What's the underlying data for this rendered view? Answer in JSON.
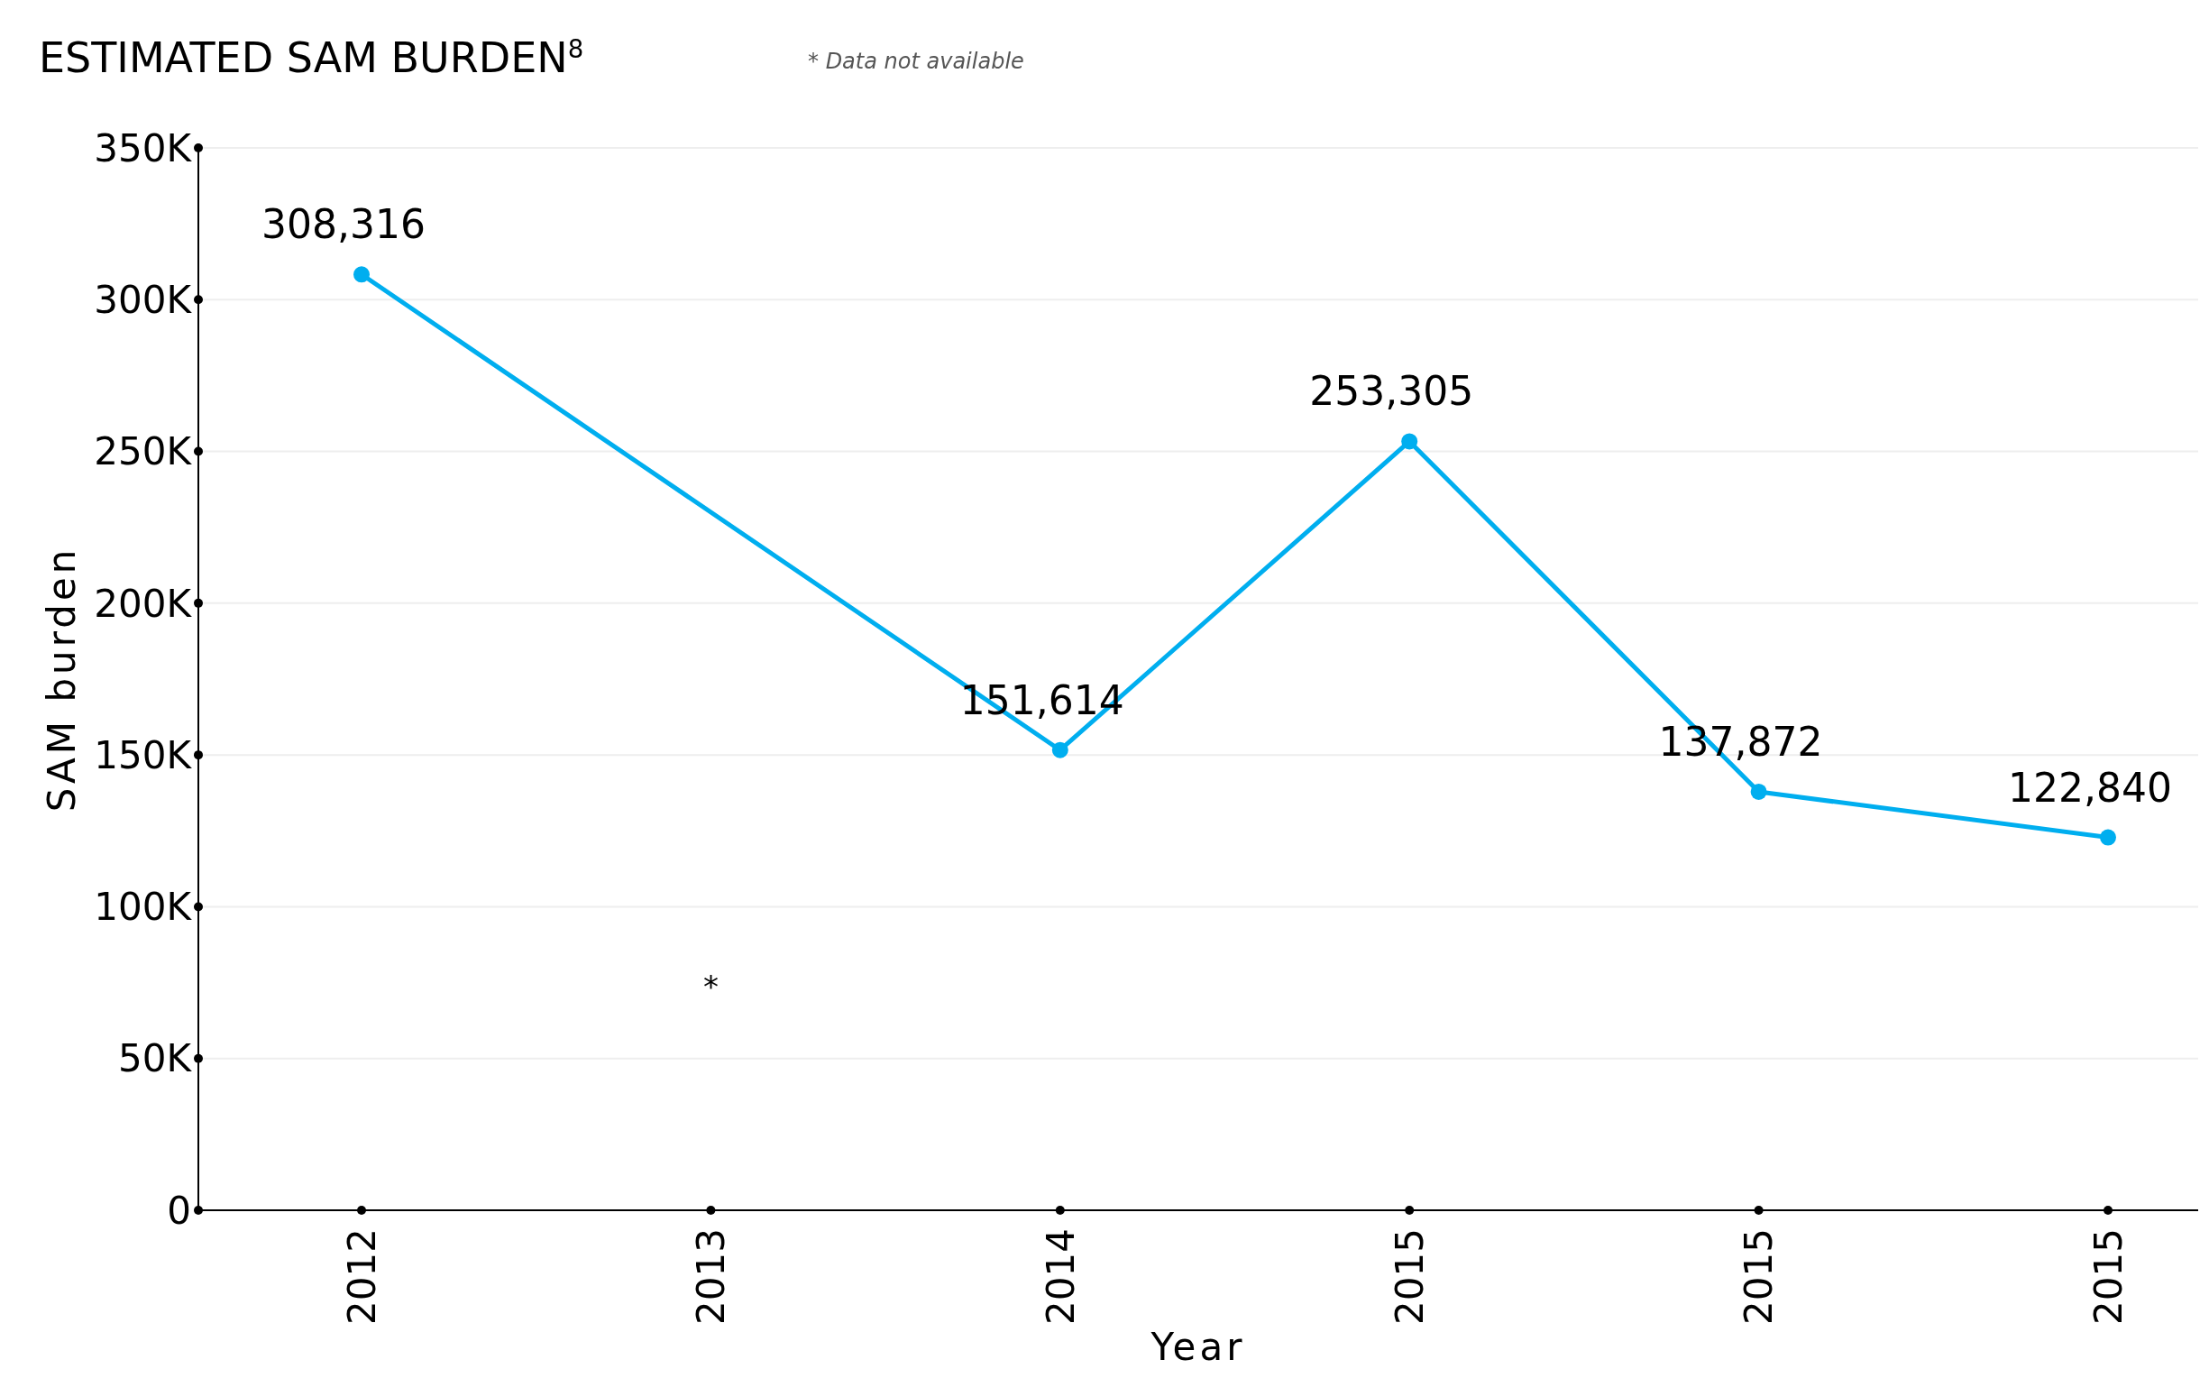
{
  "chart_data": {
    "type": "line",
    "title": "ESTIMATED SAM BURDEN$^{8}$",
    "xlabel": "Year",
    "ylabel": "SAM burden",
    "categories": [
      "2012",
      "2013",
      "2014",
      "2015",
      "2015",
      "2015"
    ],
    "series": [
      {
        "color": "#00aeef",
        "values": [
          308316,
          null,
          151614,
          253305,
          137872,
          122840
        ],
        "value_labels": [
          "308,316",
          null,
          "151,614",
          "253,305",
          "137,872",
          "122,840"
        ]
      }
    ],
    "ylim": [
      0,
      350000
    ],
    "yticks": [
      0,
      {
        "value": 50000,
        "label": "50K"
      },
      {
        "value": 100000,
        "label": "100K"
      },
      {
        "value": 150000,
        "label": "150K"
      },
      {
        "value": 200000,
        "label": "200K"
      },
      {
        "value": 250000,
        "label": "250K"
      },
      {
        "value": 300000,
        "label": "300K"
      },
      {
        "value": 350000,
        "label": "350K"
      }
    ],
    "grid": "y",
    "marker": "circle",
    "line_style": "solid",
    "annotations": [
      "* Data not available",
      "*"
    ]
  }
}
